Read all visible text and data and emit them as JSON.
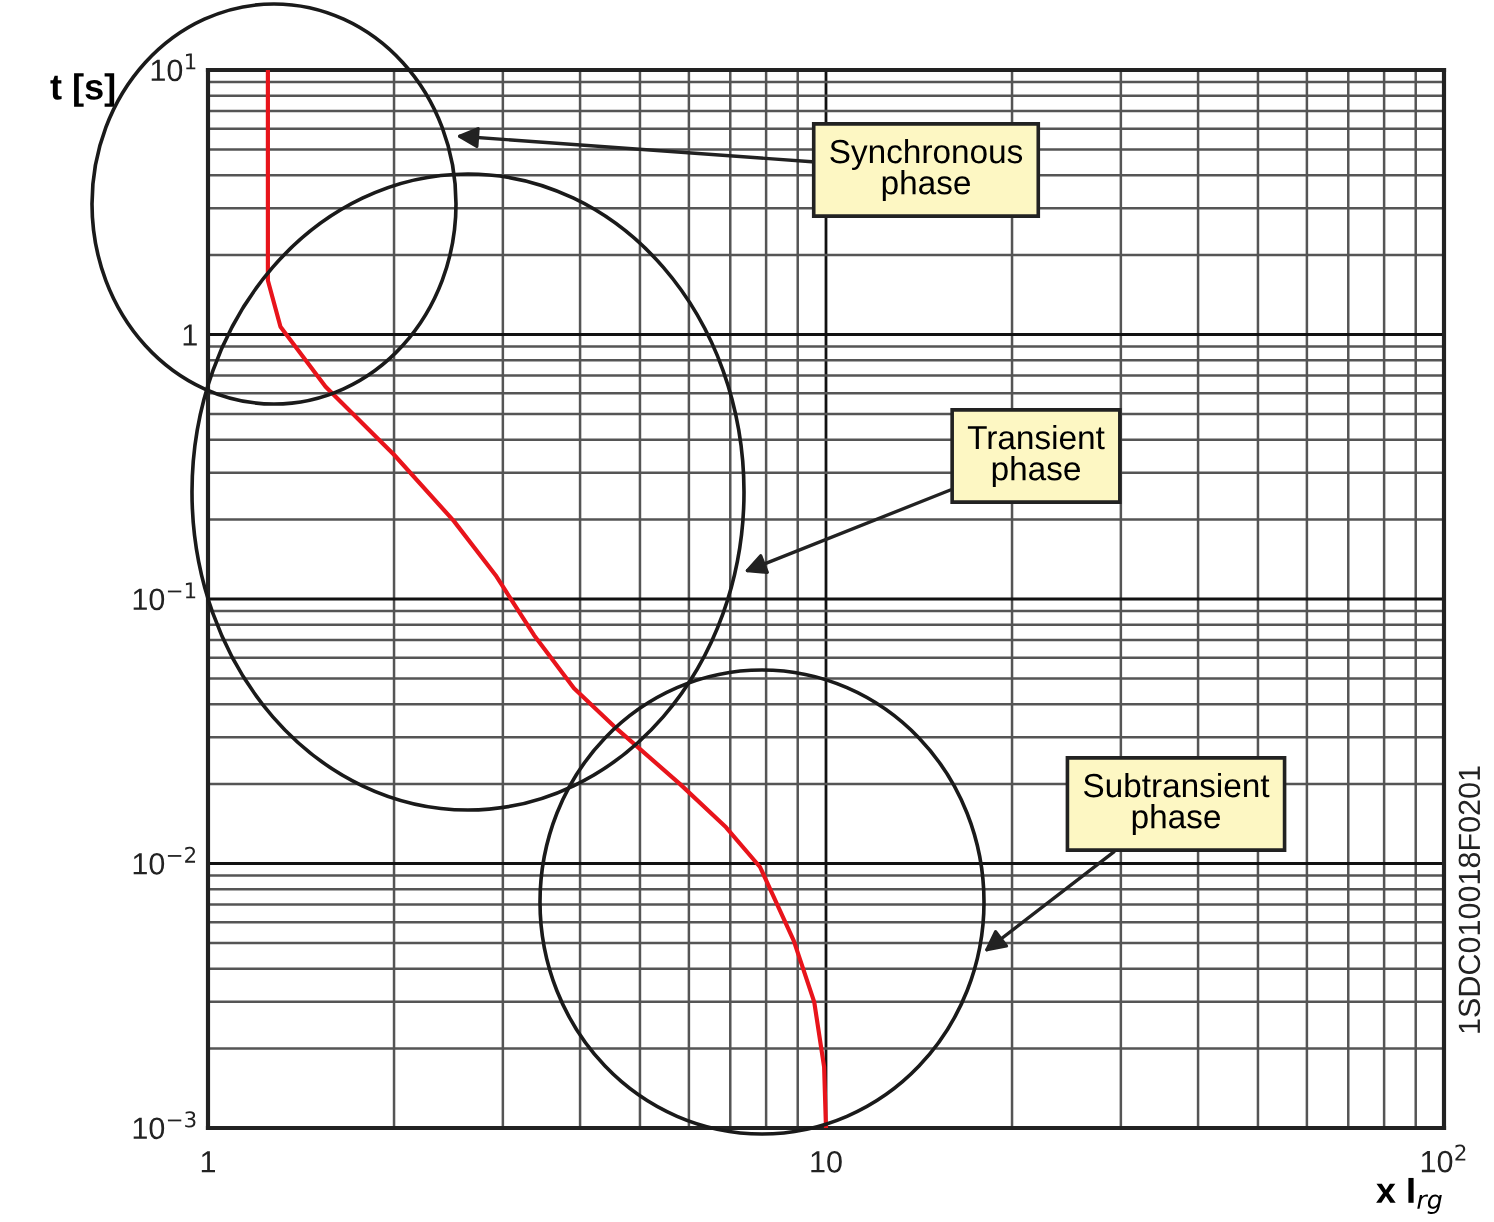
{
  "chart_data": {
    "type": "line",
    "xlabel": "x I$_{rg}$",
    "ylabel": "t [s]",
    "x": [
      1.25,
      1.25,
      1.31,
      1.55,
      2.0,
      2.5,
      2.92,
      3.37,
      3.91,
      4.54,
      5.8,
      6.89,
      7.82,
      8.87,
      9.57,
      9.93,
      10
    ],
    "series": [
      {
        "color": "#e8141b",
        "values": [
          10,
          1.6,
          1.07,
          0.635,
          0.351,
          0.197,
          0.123,
          0.073,
          0.046,
          0.033,
          0.02,
          0.0137,
          0.0097,
          0.0051,
          0.003,
          0.0017,
          0.001
        ]
      }
    ],
    "log": "xy",
    "xlim": [
      1,
      100
    ],
    "ylim": [
      0.001,
      10
    ],
    "xticks": [
      1,
      10,
      {
        "value": 100,
        "label": "10$^{2}$"
      }
    ],
    "yticks": [
      {
        "value": 0.001,
        "label": "10$^{−3}$"
      },
      {
        "value": 0.01,
        "label": "10$^{−2}$"
      },
      {
        "value": 0.1,
        "label": "10$^{−1}$"
      },
      1,
      {
        "value": 10,
        "label": "10$^{1}$"
      }
    ],
    "grid": true,
    "annotations": [
      "Synchronous\nphase",
      "Transient\nphase",
      "Subtransient\nphase",
      "1SDC010018F0201"
    ]
  }
}
